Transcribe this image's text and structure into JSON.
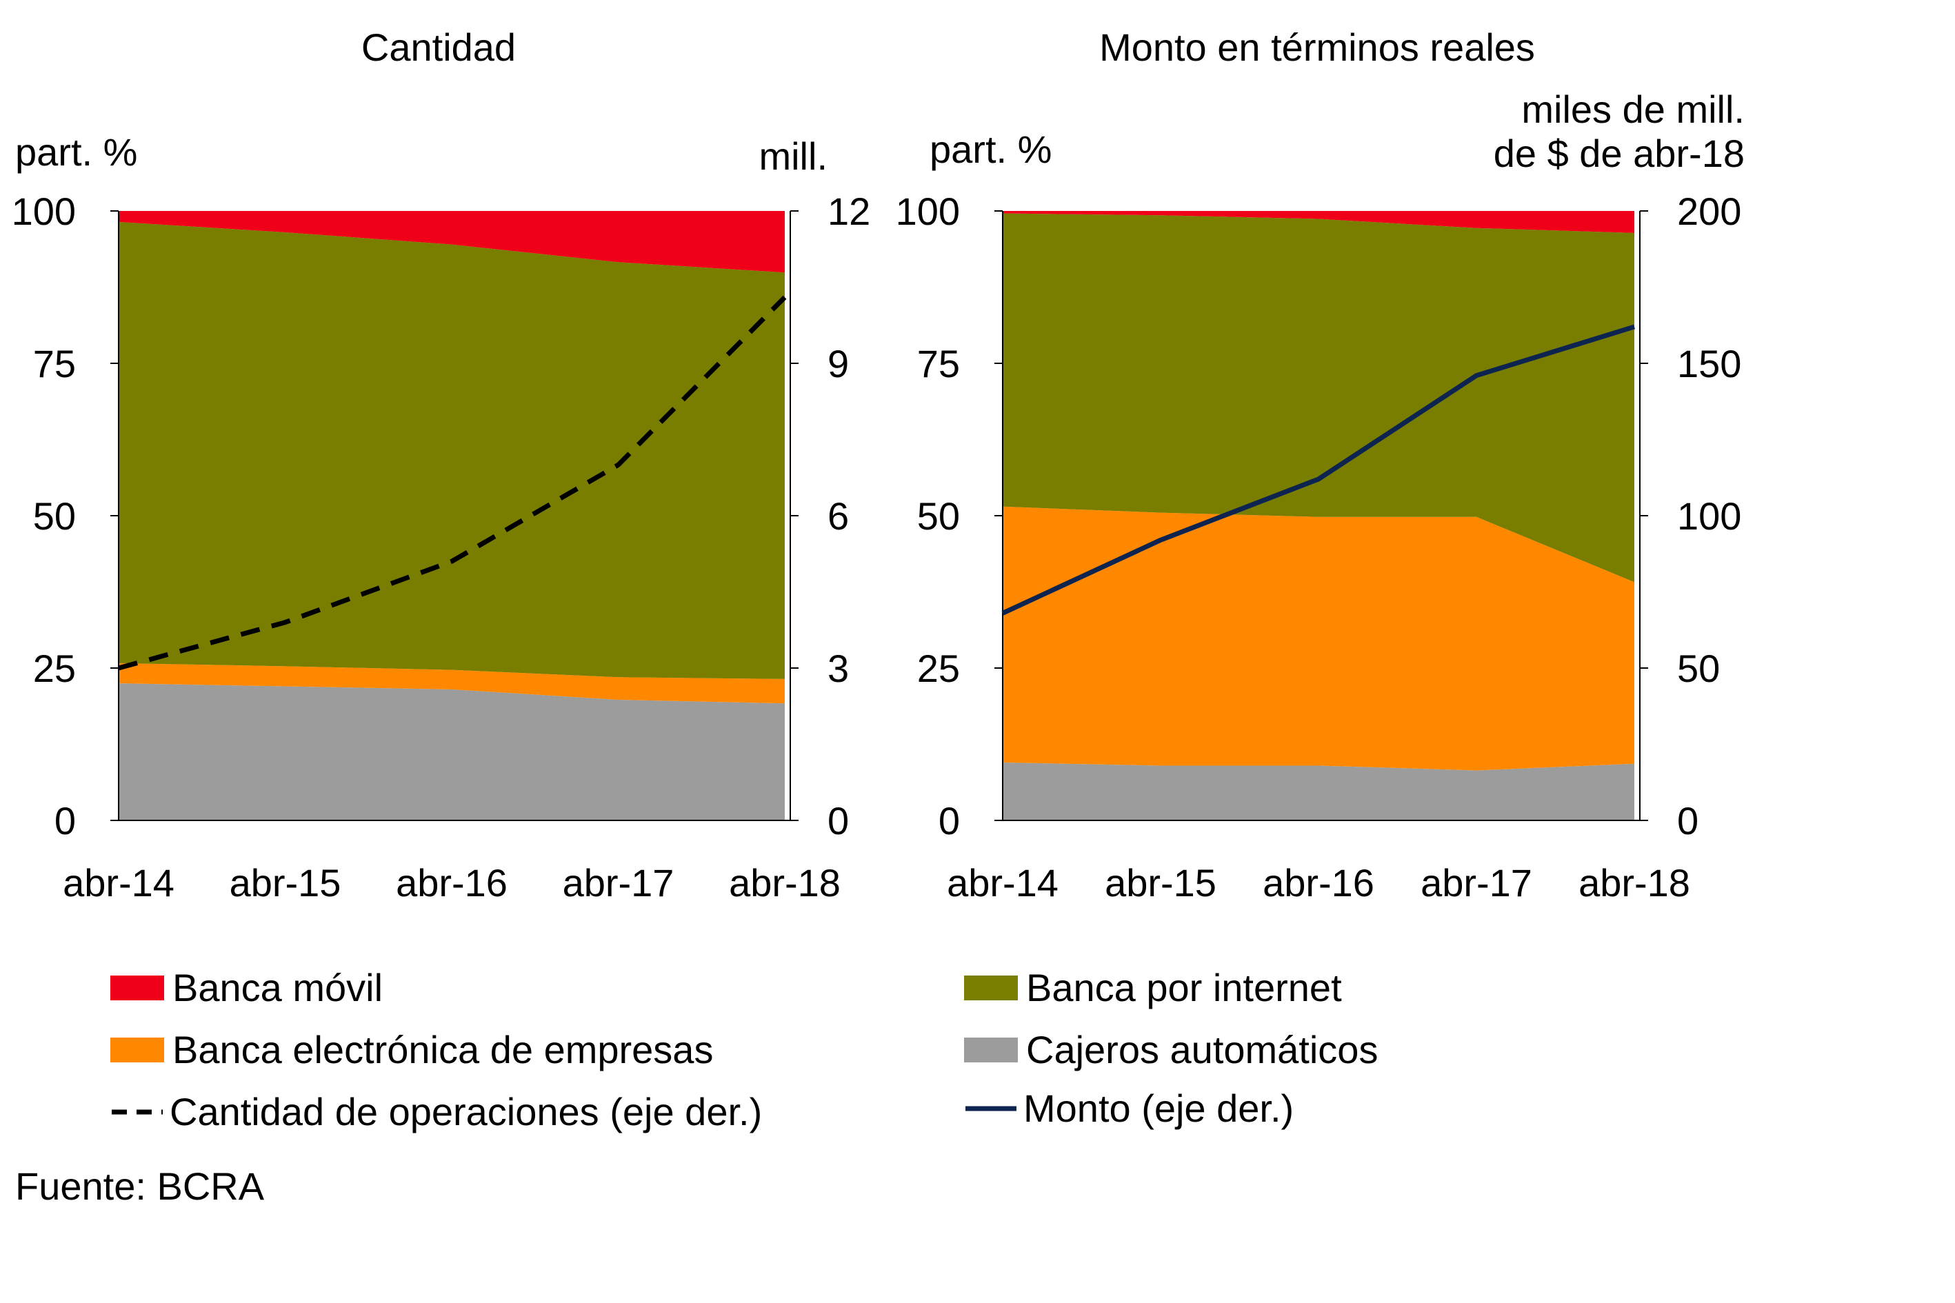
{
  "source": "Fuente:  BCRA",
  "colors": {
    "banca_movil": "#F00018",
    "banca_internet": "#7A7E00",
    "banca_empresas": "#FF8800",
    "cajeros": "#9C9C9C",
    "cantidad_line": "#000000",
    "monto_line": "#0D2451"
  },
  "legend": {
    "banca_movil": "Banca móvil",
    "banca_internet": "Banca por internet",
    "banca_empresas": "Banca electrónica de empresas",
    "cajeros": "Cajeros automáticos",
    "cantidad": "Cantidad de operaciones (eje der.)",
    "monto": "Monto  (eje der.)"
  },
  "chart_data": [
    {
      "type": "area",
      "title": "Cantidad",
      "ylabel_left": "part. %",
      "ylabel_right": "mill.",
      "x": [
        "abr-14",
        "abr-15",
        "abr-16",
        "abr-17",
        "abr-18"
      ],
      "ylim_left": [
        0,
        100
      ],
      "yticks_left": [
        "0",
        "25",
        "50",
        "75",
        "100"
      ],
      "ylim_right": [
        0,
        12
      ],
      "yticks_right": [
        "0",
        "3",
        "6",
        "9",
        "12"
      ],
      "stacked_series": [
        {
          "key": "cajeros",
          "values": [
            22.5,
            22.0,
            21.5,
            19.8,
            19.2
          ]
        },
        {
          "key": "banca_empresas",
          "values": [
            3.3,
            3.3,
            3.2,
            3.7,
            4.0
          ]
        },
        {
          "key": "banca_internet",
          "values": [
            72.4,
            71.2,
            69.8,
            68.1,
            66.7
          ]
        },
        {
          "key": "banca_movil",
          "values": [
            1.8,
            3.5,
            5.5,
            8.4,
            10.1
          ]
        }
      ],
      "line_series": {
        "key": "cantidad",
        "style": "dashed",
        "values": [
          3.0,
          3.9,
          5.1,
          7.0,
          10.3
        ]
      }
    },
    {
      "type": "area",
      "title": "Monto en términos reales",
      "ylabel_left": "part. %",
      "ylabel_right": [
        "miles de mill.",
        "de $ de abr-18"
      ],
      "x": [
        "abr-14",
        "abr-15",
        "abr-16",
        "abr-17",
        "abr-18"
      ],
      "ylim_left": [
        0,
        100
      ],
      "yticks_left": [
        "0",
        "25",
        "50",
        "75",
        "100"
      ],
      "ylim_right": [
        0,
        200
      ],
      "yticks_right": [
        "0",
        "50",
        "100",
        "150",
        "200"
      ],
      "stacked_series": [
        {
          "key": "cajeros",
          "values": [
            9.5,
            9.0,
            9.0,
            8.2,
            9.3
          ]
        },
        {
          "key": "banca_empresas",
          "values": [
            42.0,
            41.5,
            40.8,
            41.6,
            29.8
          ]
        },
        {
          "key": "banca_internet",
          "values": [
            48.1,
            48.8,
            48.9,
            47.4,
            57.3
          ]
        },
        {
          "key": "banca_movil",
          "values": [
            0.4,
            0.7,
            1.3,
            2.8,
            3.6
          ]
        }
      ],
      "line_series": {
        "key": "monto",
        "style": "solid",
        "values": [
          68,
          92,
          112,
          146,
          162
        ]
      }
    }
  ]
}
